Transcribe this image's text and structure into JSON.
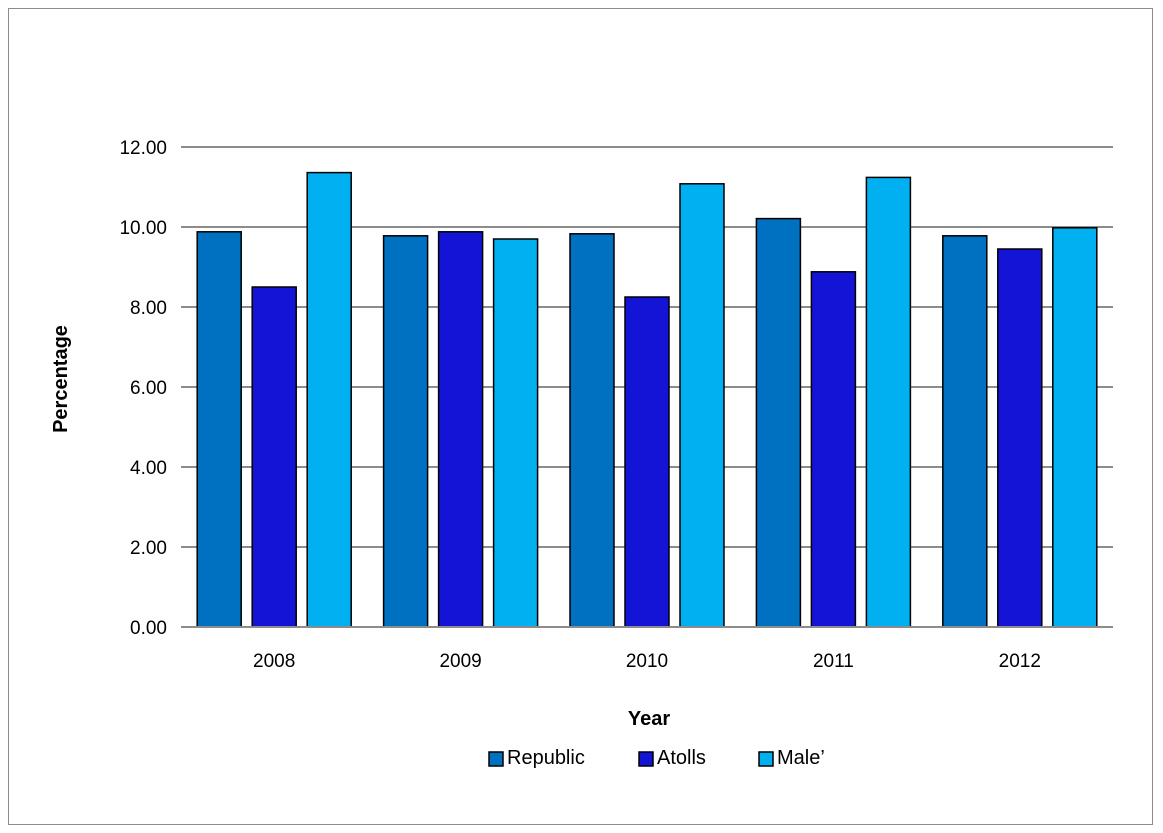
{
  "chart_data": {
    "type": "bar",
    "title": "",
    "xlabel": "Year",
    "ylabel": "Percentage",
    "categories": [
      "2008",
      "2009",
      "2010",
      "2011",
      "2012"
    ],
    "ylim": [
      0,
      12
    ],
    "yticks": [
      "0.00",
      "2.00",
      "4.00",
      "6.00",
      "8.00",
      "10.00",
      "12.00"
    ],
    "ytick_values": [
      0,
      2,
      4,
      6,
      8,
      10,
      12
    ],
    "grid": true,
    "legend_position": "bottom",
    "series": [
      {
        "name": "Republic",
        "color": "#0070c0",
        "values": [
          9.88,
          9.78,
          9.83,
          10.21,
          9.78
        ]
      },
      {
        "name": "Atolls",
        "color": "#1414d7",
        "values": [
          8.5,
          9.88,
          8.25,
          8.88,
          9.45
        ]
      },
      {
        "name": "Male’",
        "color": "#00b0f0",
        "values": [
          11.36,
          9.7,
          11.08,
          11.24,
          9.98
        ]
      }
    ]
  }
}
